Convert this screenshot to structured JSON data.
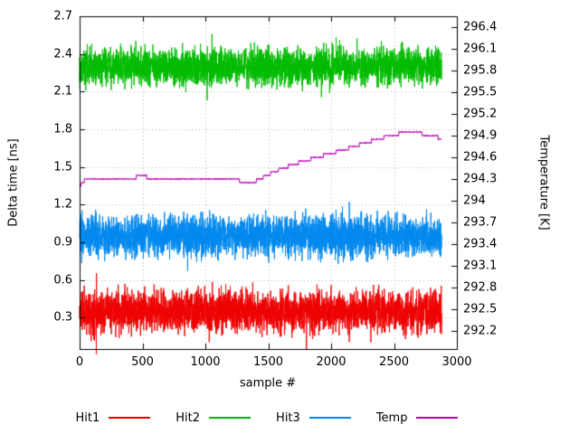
{
  "chart_data": {
    "type": "line",
    "title": "",
    "xlabel": "sample #",
    "ylabel_left": "Delta time [ns]",
    "ylabel_right": "Temperature [K]",
    "xlim": [
      0,
      3000
    ],
    "ylim_left": [
      0.05,
      2.7
    ],
    "ylim_right": [
      291.95,
      296.55
    ],
    "x_ticks": [
      0,
      500,
      1000,
      1500,
      2000,
      2500,
      3000
    ],
    "y_ticks_left": [
      0.3,
      0.6,
      0.9,
      1.2,
      1.5,
      1.8,
      2.1,
      2.4,
      2.7
    ],
    "y_ticks_right": [
      292.2,
      292.5,
      292.8,
      293.1,
      293.4,
      293.7,
      294,
      294.3,
      294.6,
      294.9,
      295.2,
      295.5,
      295.8,
      296.1,
      296.4
    ],
    "grid": true,
    "legend_position": "bottom",
    "n_samples": 2880,
    "series": [
      {
        "name": "Hit1",
        "axis": "left",
        "style": "noisy",
        "color": "#ee0000",
        "mean": 0.35,
        "noise_amp": 0.25,
        "seed": 11
      },
      {
        "name": "Hit2",
        "axis": "left",
        "style": "noisy",
        "color": "#00bb00",
        "mean": 2.3,
        "noise_amp": 0.22,
        "seed": 22
      },
      {
        "name": "Hit3",
        "axis": "left",
        "style": "noisy",
        "color": "#0088ee",
        "mean": 0.95,
        "noise_amp": 0.24,
        "seed": 33
      },
      {
        "name": "Temp",
        "axis": "right",
        "style": "step",
        "color": "#bb00bb",
        "noise_amp": 0.012,
        "quantize": 0.05,
        "seed": 44,
        "breakpoints": [
          [
            0,
            294.2
          ],
          [
            50,
            294.3
          ],
          [
            300,
            294.31
          ],
          [
            500,
            294.33
          ],
          [
            700,
            294.3
          ],
          [
            900,
            294.32
          ],
          [
            1100,
            294.3
          ],
          [
            1250,
            294.28
          ],
          [
            1380,
            294.25
          ],
          [
            1430,
            294.3
          ],
          [
            1500,
            294.36
          ],
          [
            1600,
            294.44
          ],
          [
            1700,
            294.5
          ],
          [
            1780,
            294.55
          ],
          [
            1850,
            294.58
          ],
          [
            1950,
            294.63
          ],
          [
            2050,
            294.68
          ],
          [
            2150,
            294.73
          ],
          [
            2250,
            294.79
          ],
          [
            2350,
            294.84
          ],
          [
            2450,
            294.89
          ],
          [
            2550,
            294.93
          ],
          [
            2620,
            294.95
          ],
          [
            2700,
            294.94
          ],
          [
            2760,
            294.9
          ],
          [
            2820,
            294.9
          ],
          [
            2880,
            294.85
          ]
        ]
      }
    ],
    "colors": {
      "grid": "#b4b4b4",
      "border": "#000000",
      "background": "#ffffff"
    }
  }
}
